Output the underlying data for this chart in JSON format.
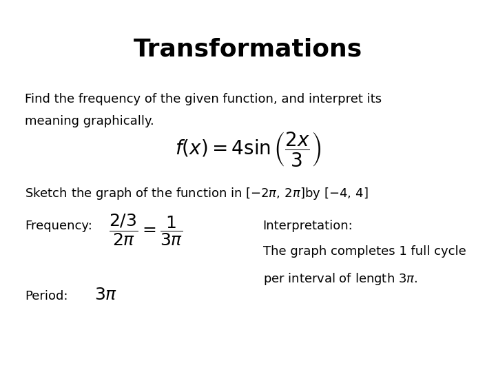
{
  "title": "Transformations",
  "background_color": "#ffffff",
  "text_color": "#000000",
  "title_fontsize": 26,
  "body_fontsize": 13,
  "line1": "Find the frequency of the given function, and interpret its",
  "line2": "meaning graphically.",
  "interp_label": "Interpretation:",
  "interp_line1": "The graph completes 1 full cycle",
  "interp_line2": "per interval of length $3\\pi$.",
  "period_label": "Period:",
  "period_expr": "$3\\pi$",
  "freq_label": "Frequency:"
}
